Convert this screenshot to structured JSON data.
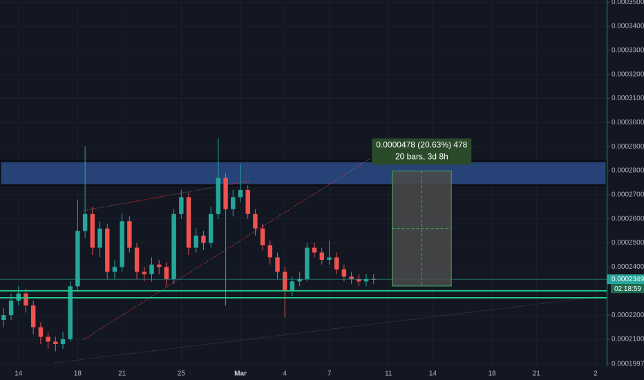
{
  "chart_data": {
    "type": "candlestick",
    "categories": [
      null,
      null,
      "14",
      null,
      null,
      null,
      null,
      null,
      null,
      null,
      "18",
      null,
      null,
      null,
      null,
      null,
      "21",
      null,
      null,
      null,
      null,
      null,
      null,
      null,
      "25",
      null,
      null,
      null,
      null,
      null,
      null,
      null,
      "Mar",
      null,
      null,
      null,
      null,
      null,
      "4",
      null,
      null,
      null,
      null,
      null,
      "7",
      null,
      null,
      null,
      null,
      null,
      null,
      null,
      "11",
      null,
      null,
      null,
      null,
      null,
      "14",
      null,
      null,
      null,
      null,
      null,
      null,
      null,
      "18",
      null,
      null,
      null,
      null,
      null,
      "21",
      null,
      null,
      null,
      null,
      null,
      null,
      null,
      "2",
      null
    ],
    "open": [
      0.000218,
      0.00022,
      0.000226,
      0.000229,
      0.000224,
      0.000215,
      0.000211,
      0.000209,
      0.000208,
      0.00021,
      0.000232,
      0.000255,
      0.000262,
      0.000248,
      0.000256,
      0.000238,
      0.00024,
      0.000259,
      0.000248,
      0.000238,
      0.000237,
      0.000241,
      0.00024,
      0.000235,
      0.000262,
      0.000269,
      0.000248,
      0.000253,
      0.00025,
      0.000262,
      0.000277,
      0.000264,
      0.000269,
      0.000272,
      0.000262,
      0.000256,
      0.000249,
      0.000244,
      0.000238,
      0.00023,
      0.000234,
      0.000235,
      0.000248,
      0.000246,
      0.000243,
      0.000244,
      0.000239,
      0.000236,
      0.000235,
      0.000234,
      0.000235,
      null,
      null,
      null,
      null,
      null,
      null,
      null,
      null,
      null,
      null,
      null,
      null,
      null,
      null,
      null,
      null,
      null,
      null,
      null,
      null,
      null,
      null,
      null,
      null,
      null,
      null,
      null,
      null,
      null,
      null,
      null
    ],
    "high": [
      0.000223,
      0.000229,
      0.000232,
      0.000231,
      0.000226,
      0.000217,
      0.000213,
      0.000211,
      0.000213,
      0.000234,
      0.000268,
      0.00029,
      0.000265,
      0.000259,
      0.000258,
      0.000243,
      0.000262,
      0.000261,
      0.00025,
      0.00024,
      0.000244,
      0.000243,
      0.000242,
      0.000264,
      0.000272,
      0.000271,
      0.000256,
      0.000255,
      0.000265,
      0.0002935,
      0.000279,
      0.000272,
      0.000283,
      0.000274,
      0.000264,
      0.000258,
      0.000251,
      0.000246,
      0.00024,
      0.000236,
      0.000238,
      0.00025,
      0.00025,
      0.000248,
      0.000251,
      0.000246,
      0.000241,
      0.000238,
      0.000237,
      0.000237,
      0.000237,
      null,
      null,
      null,
      null,
      null,
      null,
      null,
      null,
      null,
      null,
      null,
      null,
      null,
      null,
      null,
      null,
      null,
      null,
      null,
      null,
      null,
      null,
      null,
      null,
      null,
      null,
      null,
      null,
      null,
      null,
      null
    ],
    "low": [
      0.000215,
      0.000218,
      0.000224,
      0.000221,
      0.000212,
      0.000208,
      0.000206,
      0.000205,
      0.000206,
      0.000209,
      0.00023,
      0.000252,
      0.000245,
      0.000244,
      0.000235,
      0.000235,
      0.000238,
      0.000246,
      0.000235,
      0.000234,
      0.000234,
      0.000237,
      0.000232,
      0.000233,
      0.00026,
      0.000245,
      0.000246,
      0.000247,
      0.000248,
      0.00026,
      0.000224,
      0.000261,
      0.000267,
      0.00026,
      0.000253,
      0.000247,
      0.000241,
      0.000235,
      0.000219,
      0.000228,
      0.000232,
      0.000234,
      0.000244,
      0.000241,
      0.000241,
      0.000237,
      0.000234,
      0.000233,
      0.000232,
      0.000232,
      0.000233,
      null,
      null,
      null,
      null,
      null,
      null,
      null,
      null,
      null,
      null,
      null,
      null,
      null,
      null,
      null,
      null,
      null,
      null,
      null,
      null,
      null,
      null,
      null,
      null,
      null,
      null,
      null,
      null,
      null,
      null,
      null
    ],
    "close": [
      0.00022,
      0.000226,
      0.000229,
      0.000224,
      0.000215,
      0.000211,
      0.000209,
      0.000208,
      0.00021,
      0.000232,
      0.000255,
      0.000262,
      0.000248,
      0.000256,
      0.000238,
      0.00024,
      0.000259,
      0.000248,
      0.000238,
      0.000237,
      0.000241,
      0.00024,
      0.000235,
      0.000262,
      0.000269,
      0.000248,
      0.000253,
      0.00025,
      0.000262,
      0.000277,
      0.000264,
      0.000269,
      0.000272,
      0.000262,
      0.000256,
      0.000249,
      0.000244,
      0.000238,
      0.00023,
      0.000234,
      0.000235,
      0.000248,
      0.000246,
      0.000243,
      0.000244,
      0.000239,
      0.000236,
      0.000235,
      0.000234,
      0.000235,
      0.0002349,
      null,
      null,
      null,
      null,
      null,
      null,
      null,
      null,
      null,
      null,
      null,
      null,
      null,
      null,
      null,
      null,
      null,
      null,
      null,
      null,
      null,
      null,
      null,
      null,
      null,
      null,
      null,
      null,
      null,
      null,
      null
    ],
    "up_color": "#26a69a",
    "down_color": "#ef5350",
    "ylim": [
      0.0001988,
      0.0003509
    ],
    "yticks": [
      {
        "value": 0.00035,
        "label": "0.0003500"
      },
      {
        "value": 0.00034,
        "label": "0.0003400"
      },
      {
        "value": 0.00033,
        "label": "0.0003300"
      },
      {
        "value": 0.00032,
        "label": "0.0003200"
      },
      {
        "value": 0.00031,
        "label": "0.0003100"
      },
      {
        "value": 0.0003,
        "label": "0.0003000"
      },
      {
        "value": 0.00029,
        "label": "0.0002900"
      },
      {
        "value": 0.00028,
        "label": "0.0002800"
      },
      {
        "value": 0.00027,
        "label": "0.0002700"
      },
      {
        "value": 0.00026,
        "label": "0.0002600"
      },
      {
        "value": 0.00025,
        "label": "0.0002500"
      },
      {
        "value": 0.00024,
        "label": "0.0002400"
      },
      {
        "value": 0.00022,
        "label": "0.0002200"
      },
      {
        "value": 0.00021,
        "label": "0.0002100"
      },
      {
        "value": 0.0001997,
        "label": "0.0001997"
      }
    ],
    "grid": true,
    "zone": [
      0.000274,
      0.000284
    ],
    "levels": [
      0.0002301,
      0.0002272
    ],
    "last_price": {
      "value": 0.0002349,
      "label": "0.0002349"
    },
    "countdown": "02:18:59",
    "measure": {
      "from": 0.0002321,
      "to": 0.0002799,
      "label": "0.0000478 (20.63%) 478",
      "sublabel": "20 bars, 3d 8h"
    }
  }
}
